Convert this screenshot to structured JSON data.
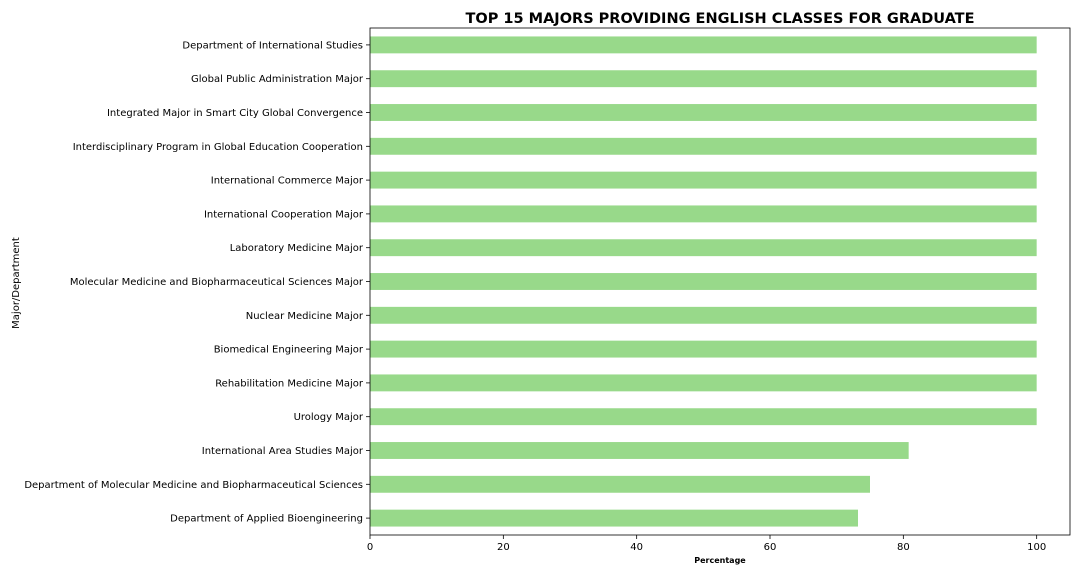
{
  "chart_data": {
    "type": "bar",
    "orientation": "horizontal",
    "title": "TOP 15 MAJORS PROVIDING ENGLISH CLASSES FOR GRADUATE",
    "xlabel": "Percentage",
    "ylabel": "Major/Department",
    "xlim": [
      0,
      105
    ],
    "xticks": [
      0,
      20,
      40,
      60,
      80,
      100
    ],
    "xtick_labels": [
      "0",
      "20",
      "40",
      "60",
      "80",
      "100"
    ],
    "grid": false,
    "legend": "none",
    "bar_color": "#98d98a",
    "categories": [
      "Department of International Studies",
      "Global Public Administration Major",
      "Integrated Major in Smart City Global Convergence",
      "Interdisciplinary Program in Global Education Cooperation",
      "International Commerce Major",
      "International Cooperation Major",
      "Laboratory Medicine Major",
      "Molecular Medicine and Biopharmaceutical Sciences Major",
      "Nuclear Medicine Major",
      "Biomedical Engineering Major",
      "Rehabilitation Medicine Major",
      "Urology Major",
      "International Area Studies Major",
      "Department of Molecular Medicine and Biopharmaceutical Sciences",
      "Department of Applied Bioengineering"
    ],
    "values": [
      100,
      100,
      100,
      100,
      100,
      100,
      100,
      100,
      100,
      100,
      100,
      100,
      80.8,
      75.0,
      73.2
    ]
  }
}
